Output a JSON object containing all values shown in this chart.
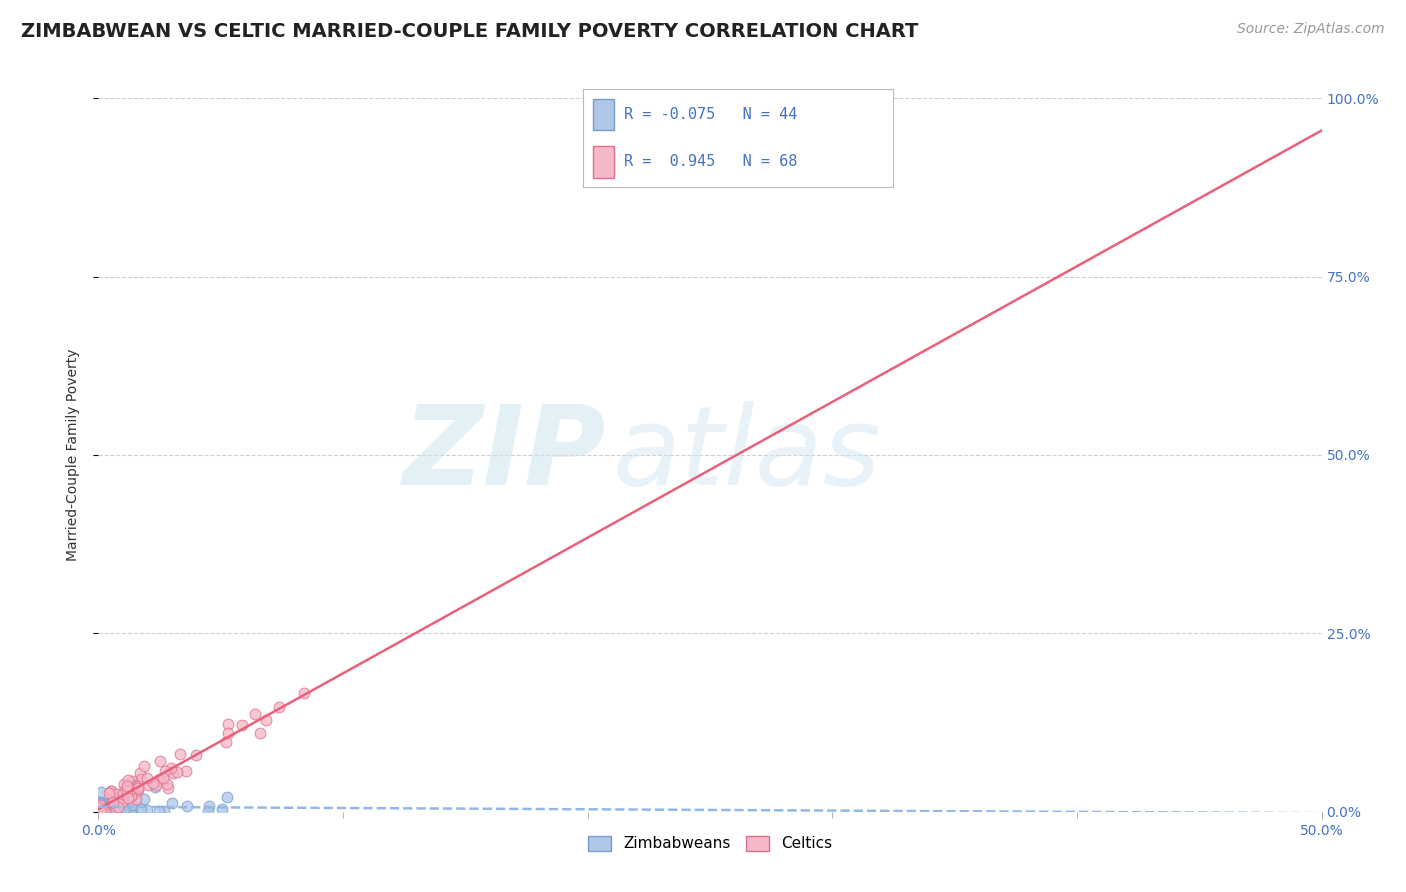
{
  "title": "ZIMBABWEAN VS CELTIC MARRIED-COUPLE FAMILY POVERTY CORRELATION CHART",
  "source_text": "Source: ZipAtlas.com",
  "ylabel": "Married-Couple Family Poverty",
  "xlim": [
    0.0,
    0.5
  ],
  "ylim": [
    0.0,
    1.0
  ],
  "grid_color": "#d0d0d0",
  "background_color": "#ffffff",
  "plot_bg_color": "#ffffff",
  "zimbabwean_color": "#aec6e8",
  "celtic_color": "#f5b8c8",
  "zimbabwean_edge": "#7a9cc8",
  "celtic_edge": "#e07090",
  "trend_zimbabwean_color": "#90b8e8",
  "trend_celtic_color": "#e8607a",
  "R_zimbabwean": -0.075,
  "N_zimbabwean": 44,
  "R_celtic": 0.945,
  "N_celtic": 68,
  "watermark_zip": "ZIP",
  "watermark_atlas": "atlas",
  "title_fontsize": 14,
  "axis_label_fontsize": 10,
  "tick_fontsize": 10,
  "legend_fontsize": 11,
  "source_fontsize": 10,
  "marker_size": 60,
  "tick_color": "#4472c4",
  "zimbabwean_seed": 42,
  "celtic_seed": 7
}
